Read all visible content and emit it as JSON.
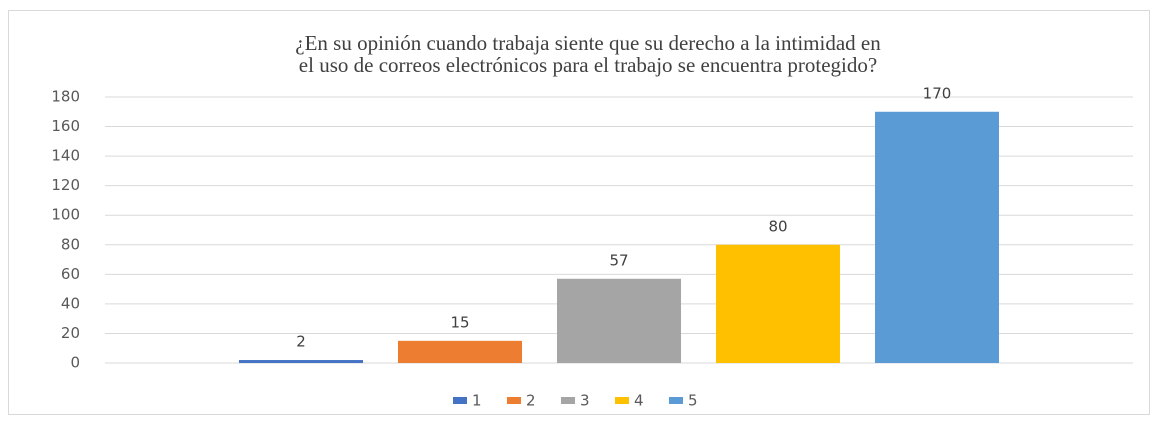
{
  "chart_data": {
    "type": "bar",
    "title": [
      "¿En su opinión cuando trabaja siente que su derecho a la intimidad en",
      "el uso de correos electrónicos para el trabajo se encuentra protegido?"
    ],
    "categories": [
      null
    ],
    "series": [
      {
        "name": "1",
        "color": "#4472c4",
        "values": [
          2
        ]
      },
      {
        "name": "2",
        "color": "#ed7d31",
        "values": [
          15
        ]
      },
      {
        "name": "3",
        "color": "#a5a5a5",
        "values": [
          57
        ]
      },
      {
        "name": "4",
        "color": "#ffc000",
        "values": [
          80
        ]
      },
      {
        "name": "5",
        "color": "#5b9bd5",
        "values": [
          170
        ]
      }
    ],
    "ylim": [
      0,
      180
    ],
    "yticks": [
      0,
      20,
      40,
      60,
      80,
      100,
      120,
      140,
      160,
      180
    ],
    "grid": true,
    "legend": "bottom"
  }
}
